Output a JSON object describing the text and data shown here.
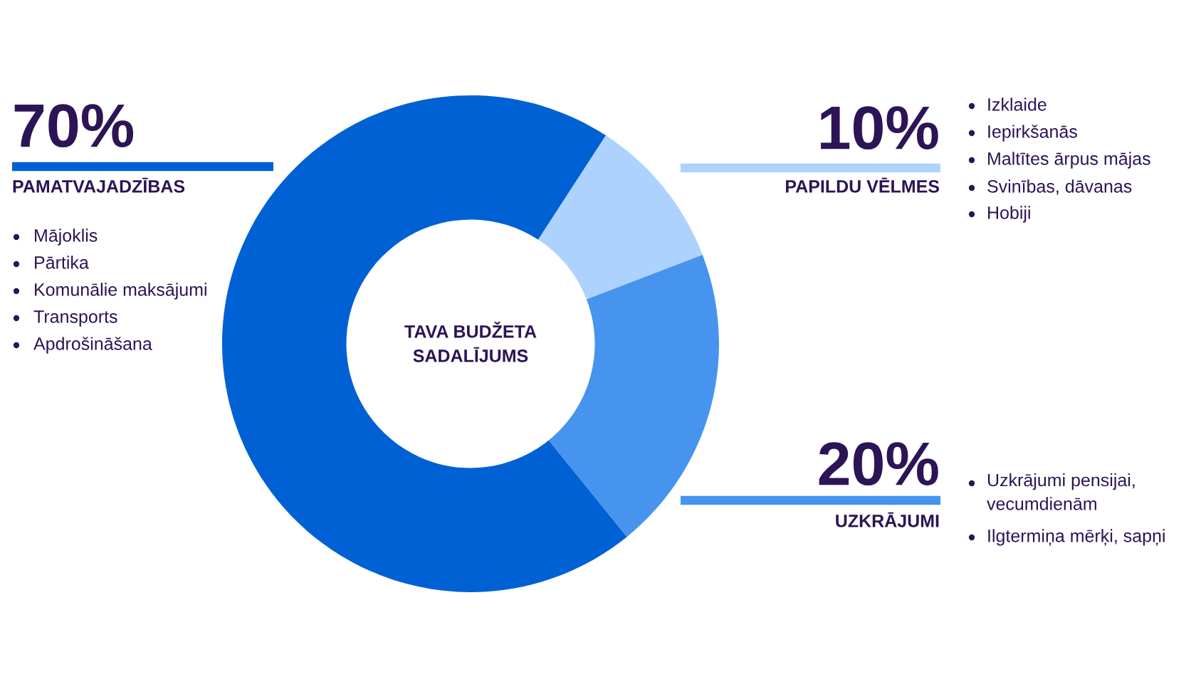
{
  "chart_data": {
    "type": "donut",
    "title": "TAVA BUDŽETA\nSADALĪJUMS",
    "categories": [
      "PAMATVAJADZĪBAS",
      "PAPILDU VĒLMES",
      "UZKRĀJUMI"
    ],
    "values": [
      70,
      10,
      20
    ],
    "colors": [
      "#0061d4",
      "#aed2fe",
      "#4694ee"
    ],
    "value_labels": [
      "70%",
      "10%",
      "20%"
    ],
    "annotations": [
      "Mājoklis",
      "Pārtika",
      "Komunālie maksājumi",
      "Transports",
      "Apdrošināšana",
      "Izklaide",
      "Iepirkšanās",
      "Maltītes ārpus mājas",
      "Svinības, dāvanas",
      "Hobiji",
      "Uzkrājumi pensijai,\nvecumdienām",
      "Ilgtermiņa mērķi, sapņi"
    ],
    "legend": false
  }
}
